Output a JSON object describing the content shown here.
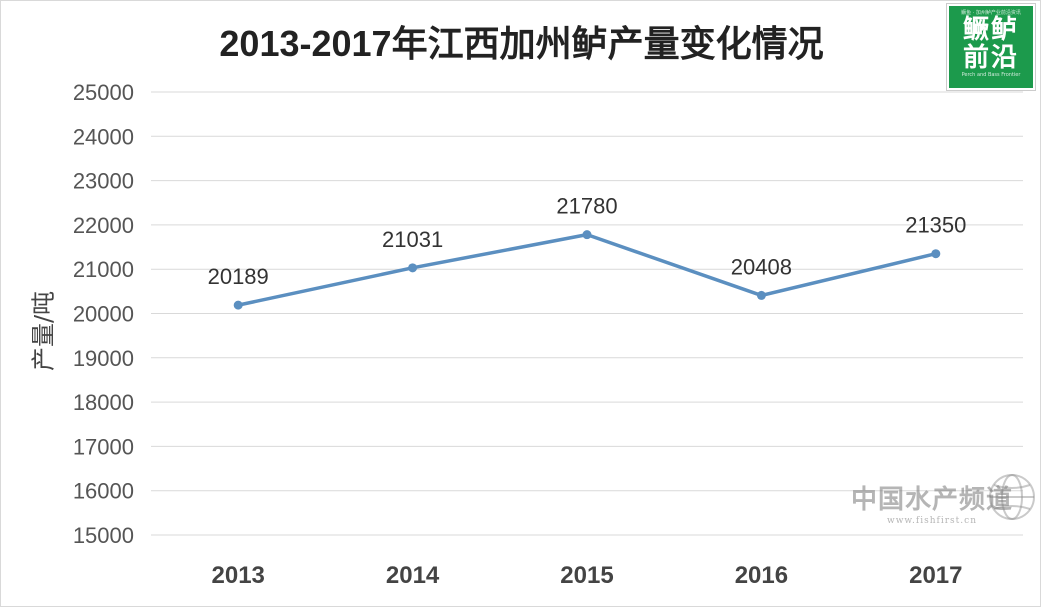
{
  "chart_data": {
    "type": "line",
    "title": "2013-2017年江西加州鲈产量变化情况",
    "xlabel": "",
    "ylabel": "产量/吨",
    "categories": [
      "2013",
      "2014",
      "2015",
      "2016",
      "2017"
    ],
    "series": [
      {
        "name": "产量",
        "values": [
          20189,
          21031,
          21780,
          20408,
          21350
        ],
        "color": "#5b8fc0"
      }
    ],
    "ylim": [
      15000,
      25000
    ],
    "yticks": [
      15000,
      16000,
      17000,
      18000,
      19000,
      20000,
      21000,
      22000,
      23000,
      24000,
      25000
    ],
    "grid": true,
    "legend": "none",
    "data_labels": true
  },
  "logo": {
    "line1": "鳜鲈",
    "line2": "前沿",
    "tagline": "鳜鱼 · 加州鲈产业前沿资讯",
    "english": "Perch and Bass Frontier"
  },
  "watermark": {
    "text": "中国水产频道",
    "url": "www.fishfirst.cn"
  }
}
